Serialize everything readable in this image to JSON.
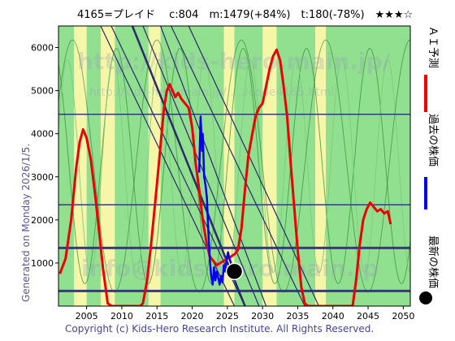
{
  "header": {
    "title": "4165=プレイド　 c:804　m:1479(+84%)　t:180(-78%)　★★★☆"
  },
  "side_note": "Generated on Monday 2026/1/5.",
  "footer": "Copyright (c) Kids-Hero Research Institute. All Rights Reserved.",
  "watermarks": {
    "url": "http://kids-hero.main.jp/",
    "detail": "http://kids-hero.main.jp/...../code4165.html",
    "email": "info@kids-hero.main.jp"
  },
  "legend": {
    "ai": "ＡＩ予測",
    "past": "過去の株価",
    "latest": "最新の株価"
  },
  "colors": {
    "ai": "#ee0000",
    "past": "#0000ee",
    "latest": "#000000",
    "band_green": "#90e090",
    "band_yellow": "#f6f6a8",
    "hline": "#3a3a78",
    "diag": "#2a2a6a"
  },
  "chart_data": {
    "type": "line",
    "title": "4165=プレイド c:804 m:1479(+84%) t:180(-78%) ★★★☆",
    "xlim": [
      2001,
      2051
    ],
    "ylim": [
      0,
      6500
    ],
    "xticks": [
      2005,
      2010,
      2015,
      2020,
      2025,
      2030,
      2035,
      2040,
      2045,
      2050
    ],
    "yticks": [
      1000,
      2000,
      3000,
      4000,
      5000,
      6000
    ],
    "grid": false,
    "legend_position": "right",
    "series": [
      {
        "name": "ＡＩ予測",
        "x": [
          2001.2,
          2002.0,
          2002.8,
          2003.5,
          2004.0,
          2004.5,
          2005.0,
          2005.6,
          2006.2,
          2006.8,
          2007.3,
          2007.8,
          2008.0,
          2008.6,
          2009.2,
          2009.8,
          2010.5,
          2011.2,
          2012.0,
          2012.6,
          2013.0,
          2013.6,
          2014.2,
          2014.8,
          2015.2,
          2015.6,
          2016.0,
          2016.4,
          2016.8,
          2017.2,
          2017.6,
          2018.0,
          2018.5,
          2019.0,
          2019.5,
          2020.0,
          2020.5,
          2021.0,
          2021.5,
          2022.0,
          2022.5,
          2023.0,
          2023.5,
          2024.0,
          2024.5,
          2025.0,
          2025.5,
          2026.0,
          2026.5,
          2027.0,
          2027.5,
          2028.0,
          2028.5,
          2029.0,
          2029.5,
          2030.0,
          2030.5,
          2031.0,
          2031.5,
          2032.0,
          2032.5,
          2033.0,
          2033.5,
          2034.0,
          2034.5,
          2035.0,
          2035.5,
          2036.0,
          2036.5,
          2042.8,
          2043.3,
          2043.8,
          2044.3,
          2044.8,
          2045.3,
          2045.8,
          2046.3,
          2046.8,
          2047.3,
          2047.8,
          2048.2
        ],
        "y": [
          750,
          1100,
          2000,
          3200,
          3800,
          4100,
          3900,
          3400,
          2600,
          1700,
          900,
          300,
          60,
          0,
          0,
          0,
          0,
          0,
          0,
          0,
          60,
          600,
          1500,
          2500,
          3200,
          3900,
          4600,
          5000,
          5150,
          5000,
          4850,
          4950,
          4800,
          4700,
          4600,
          4150,
          3300,
          2700,
          2000,
          1500,
          1150,
          1050,
          950,
          1000,
          1050,
          1100,
          1150,
          1200,
          1300,
          1800,
          2700,
          3500,
          3950,
          4400,
          4600,
          4700,
          5100,
          5500,
          5800,
          5950,
          5700,
          5100,
          4400,
          3300,
          2300,
          1300,
          450,
          60,
          0,
          0,
          600,
          1400,
          2000,
          2250,
          2400,
          2300,
          2200,
          2250,
          2150,
          2200,
          1900
        ]
      },
      {
        "name": "過去の株価",
        "x": [
          2021.0,
          2021.2,
          2021.4,
          2021.5,
          2021.7,
          2021.9,
          2022.1,
          2022.3,
          2022.5,
          2022.7,
          2022.9,
          2023.1,
          2023.3,
          2023.5,
          2023.7,
          2023.9,
          2024.1,
          2024.3,
          2024.5,
          2024.7,
          2024.9,
          2025.1,
          2025.3,
          2025.5,
          2025.7,
          2025.9
        ],
        "y": [
          3100,
          4400,
          3600,
          4000,
          3000,
          2800,
          2500,
          1700,
          1100,
          700,
          500,
          900,
          600,
          800,
          650,
          500,
          700,
          550,
          950,
          800,
          1100,
          1250,
          1100,
          1000,
          850,
          804
        ]
      }
    ],
    "latest": {
      "x": 2026.0,
      "y": 804
    },
    "reference_levels": [
      350,
      1350,
      2350,
      4450
    ],
    "trend_lines": [
      {
        "x": [
          2007.0,
          2026.0
        ],
        "y": [
          6500,
          0
        ]
      },
      {
        "x": [
          2008.5,
          2027.5
        ],
        "y": [
          6500,
          0
        ]
      },
      {
        "x": [
          2011.5,
          2027.5
        ],
        "y": [
          6500,
          0
        ]
      },
      {
        "x": [
          2013.0,
          2029.5
        ],
        "y": [
          6500,
          0
        ]
      },
      {
        "x": [
          2015.5,
          2030.5
        ],
        "y": [
          6500,
          0
        ]
      },
      {
        "x": [
          2017.0,
          2036.0
        ],
        "y": [
          6500,
          0
        ]
      },
      {
        "x": [
          2019.5,
          2038.0
        ],
        "y": [
          6500,
          0
        ]
      }
    ],
    "bands": [
      {
        "from": 2001.0,
        "to": 2003.2,
        "color": "green"
      },
      {
        "from": 2003.2,
        "to": 2005.0,
        "color": "yellow"
      },
      {
        "from": 2005.0,
        "to": 2007.0,
        "color": "green"
      },
      {
        "from": 2007.0,
        "to": 2009.0,
        "color": "yellow"
      },
      {
        "from": 2009.0,
        "to": 2013.8,
        "color": "green"
      },
      {
        "from": 2013.8,
        "to": 2015.5,
        "color": "yellow"
      },
      {
        "from": 2015.5,
        "to": 2024.5,
        "color": "green"
      },
      {
        "from": 2024.5,
        "to": 2026.0,
        "color": "yellow"
      },
      {
        "from": 2026.0,
        "to": 2030.0,
        "color": "green"
      },
      {
        "from": 2030.0,
        "to": 2032.0,
        "color": "yellow"
      },
      {
        "from": 2032.0,
        "to": 2037.5,
        "color": "green"
      },
      {
        "from": 2037.5,
        "to": 2039.0,
        "color": "yellow"
      },
      {
        "from": 2039.0,
        "to": 2051.0,
        "color": "green"
      }
    ]
  }
}
